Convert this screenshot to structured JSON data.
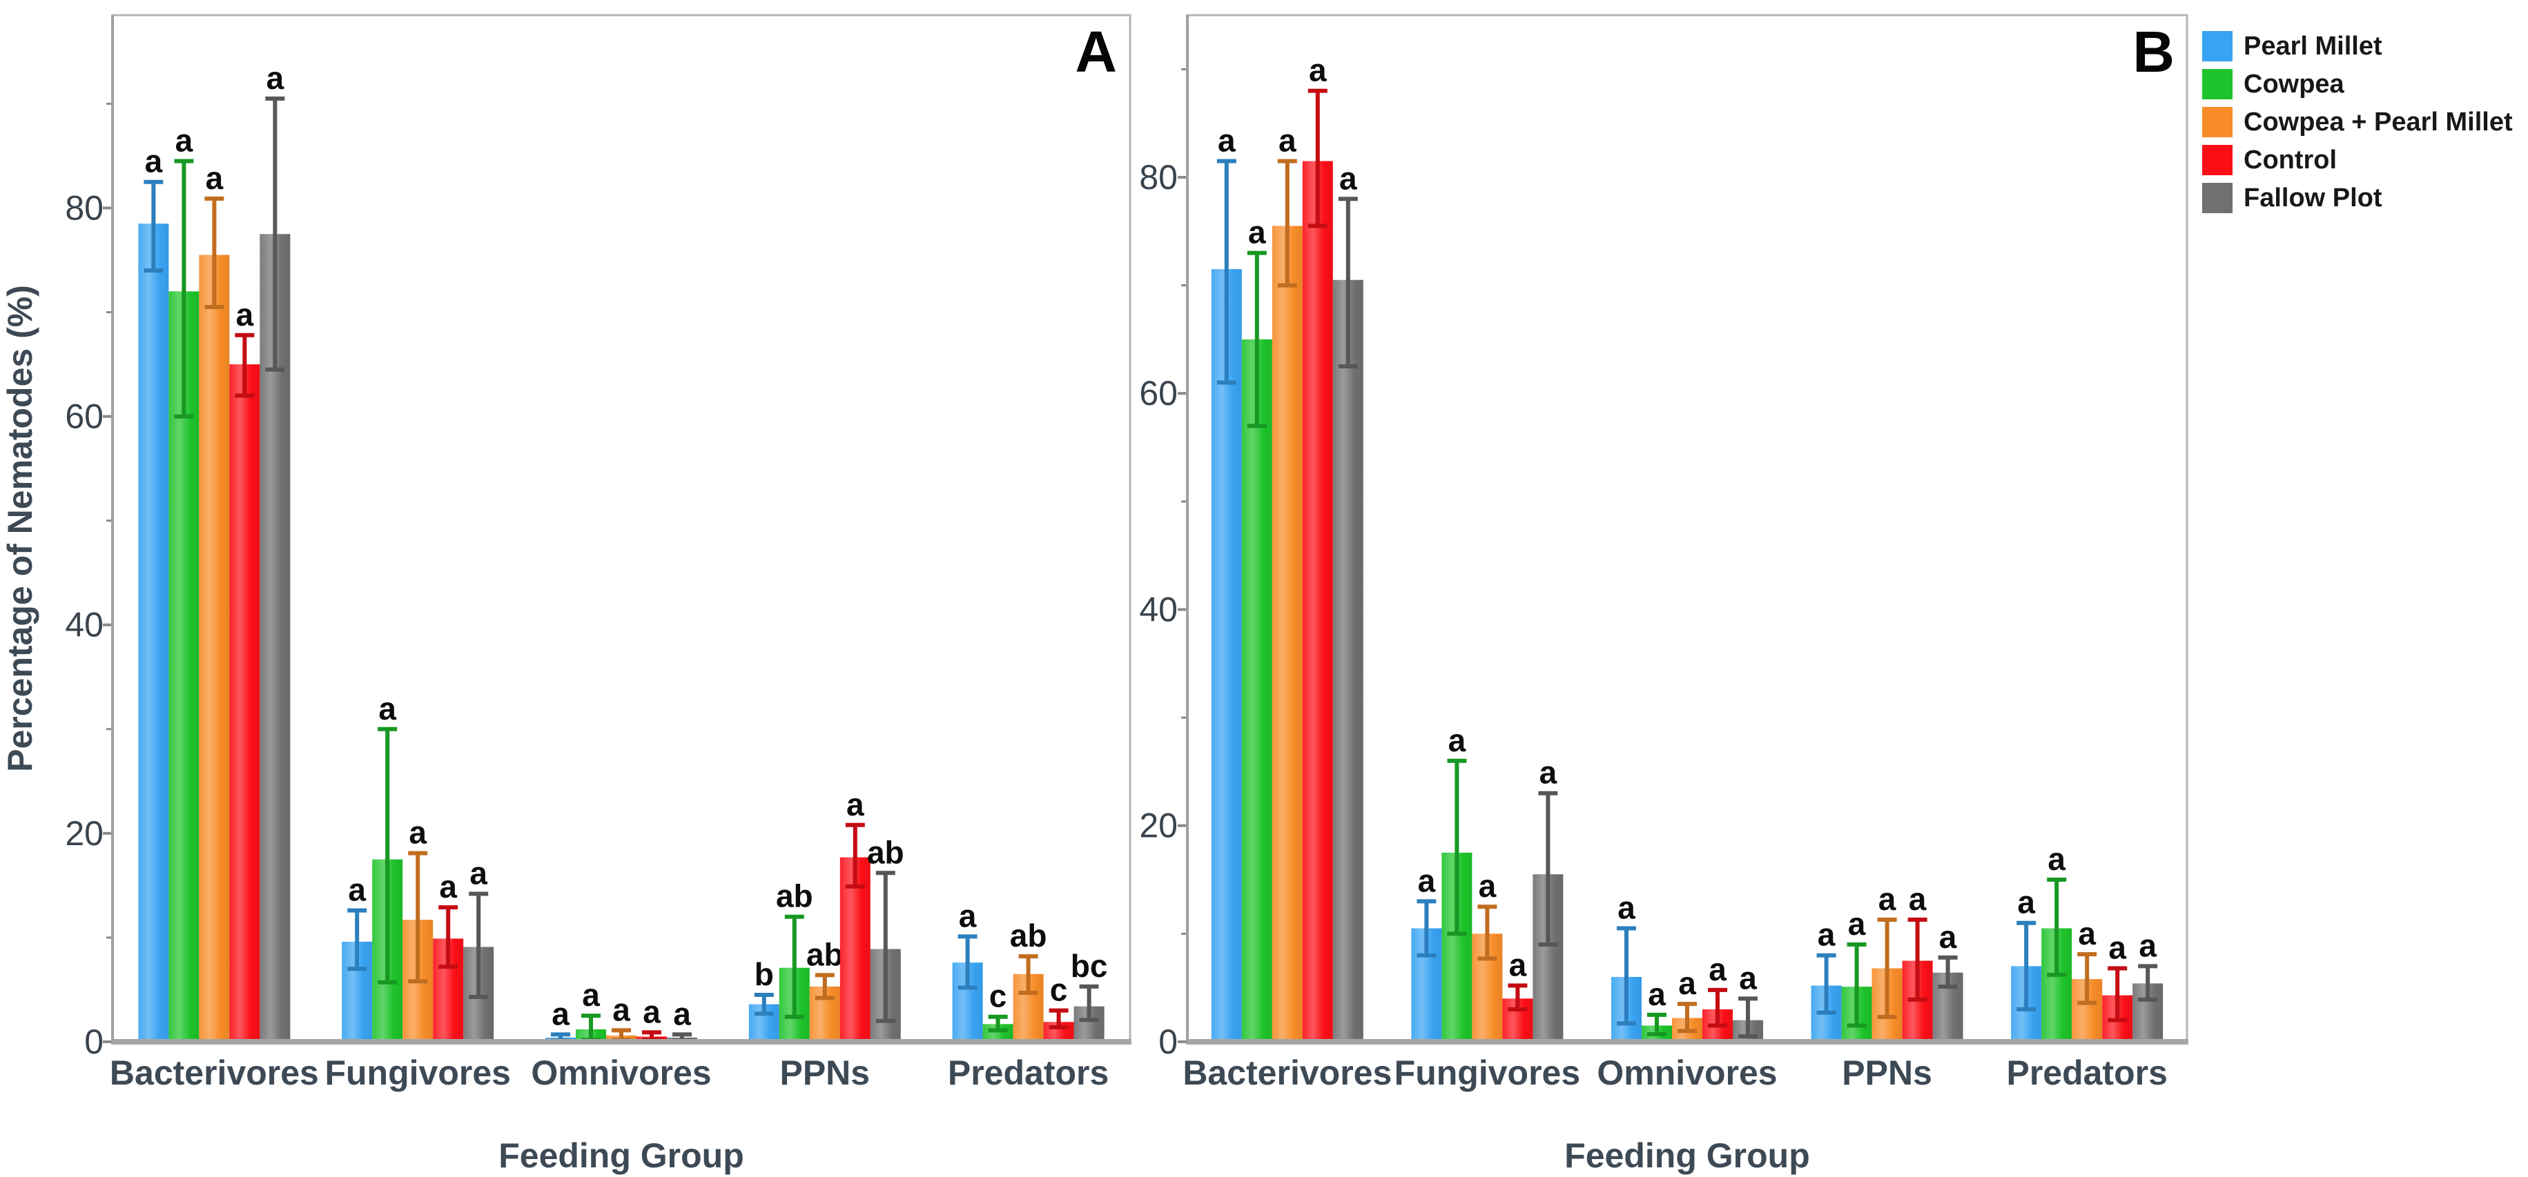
{
  "figure": {
    "panel_a_label": "A",
    "panel_b_label": "B",
    "x_axis_title": "Feeding Group",
    "y_axis_title": "Percentage of Nematodes (%)"
  },
  "legend": {
    "items": [
      {
        "label": "Pearl Millet",
        "color": "#38A3F2"
      },
      {
        "label": "Cowpea",
        "color": "#1EC32B"
      },
      {
        "label": "Cowpea + Pearl Millet",
        "color": "#F78C28"
      },
      {
        "label": "Control",
        "color": "#FB0F17"
      },
      {
        "label": "Fallow Plot",
        "color": "#6F7072"
      }
    ]
  },
  "chart_data": {
    "type": "bar",
    "title": "",
    "xlabel": "Feeding Group",
    "ylabel": "Percentage of Nematodes (%)",
    "categories": [
      "Bacterivores",
      "Fungivores",
      "Omnivores",
      "PPNs",
      "Predators"
    ],
    "y_ticks": [
      0,
      20,
      40,
      60,
      80
    ],
    "y_minor_ticks": [
      10,
      30,
      50,
      70,
      90
    ],
    "grid": false,
    "error_bars": true,
    "significance_letters": true,
    "legend_position": "outside-top-right",
    "panels": [
      {
        "label": "A",
        "y_axis_max_display": 98.5,
        "series": [
          {
            "name": "Pearl Millet",
            "color": "#38A3F2",
            "values": [
              78.5,
              9.6,
              0.4,
              3.6,
              7.6
            ],
            "err_up": [
              4.0,
              3.0,
              0.3,
              0.9,
              2.5
            ],
            "err_down": [
              4.5,
              2.6,
              0.3,
              0.9,
              2.4
            ],
            "letters": [
              "a",
              "a",
              "a",
              "b",
              "a"
            ]
          },
          {
            "name": "Cowpea",
            "color": "#1EC32B",
            "values": [
              72.0,
              17.5,
              1.2,
              7.1,
              1.7
            ],
            "err_up": [
              12.5,
              12.5,
              1.3,
              4.9,
              0.7
            ],
            "err_down": [
              12.0,
              11.8,
              1.0,
              4.7,
              0.6
            ],
            "letters": [
              "a",
              "a",
              "a",
              "ab",
              "c"
            ]
          },
          {
            "name": "Cowpea + Pearl Millet",
            "color": "#F78C28",
            "values": [
              75.5,
              11.7,
              0.6,
              5.3,
              6.5
            ],
            "err_up": [
              5.4,
              6.4,
              0.5,
              1.1,
              1.7
            ],
            "err_down": [
              5.0,
              5.9,
              0.4,
              1.1,
              1.8
            ],
            "letters": [
              "a",
              "a",
              "a",
              "ab",
              "ab"
            ]
          },
          {
            "name": "Control",
            "color": "#FB0F17",
            "values": [
              65.0,
              9.9,
              0.5,
              17.7,
              1.9
            ],
            "err_up": [
              2.8,
              3.0,
              0.4,
              3.1,
              1.1
            ],
            "err_down": [
              3.0,
              2.7,
              0.3,
              2.8,
              0.5
            ],
            "letters": [
              "a",
              "a",
              "a",
              "a",
              "c"
            ]
          },
          {
            "name": "Fallow Plot",
            "color": "#6F7072",
            "values": [
              77.5,
              9.1,
              0.4,
              8.9,
              3.4
            ],
            "err_up": [
              13.0,
              5.1,
              0.3,
              7.3,
              1.9
            ],
            "err_down": [
              13.0,
              4.8,
              0.3,
              6.9,
              1.3
            ],
            "letters": [
              "a",
              "a",
              "a",
              "ab",
              "bc"
            ]
          }
        ]
      },
      {
        "label": "B",
        "y_axis_max_display": 95.0,
        "series": [
          {
            "name": "Pearl Millet",
            "color": "#38A3F2",
            "values": [
              71.5,
              10.5,
              6.0,
              5.2,
              7.0
            ],
            "err_up": [
              10.0,
              2.5,
              4.5,
              2.8,
              4.0
            ],
            "err_down": [
              10.5,
              2.5,
              4.3,
              2.5,
              4.0
            ],
            "letters": [
              "a",
              "a",
              "a",
              "a",
              "a"
            ]
          },
          {
            "name": "Cowpea",
            "color": "#1EC32B",
            "values": [
              65.0,
              17.5,
              1.5,
              5.1,
              10.5
            ],
            "err_up": [
              8.0,
              8.5,
              1.0,
              3.9,
              4.5
            ],
            "err_down": [
              8.0,
              7.5,
              0.8,
              3.6,
              4.3
            ],
            "letters": [
              "a",
              "a",
              "a",
              "a",
              "a"
            ]
          },
          {
            "name": "Cowpea + Pearl Millet",
            "color": "#F78C28",
            "values": [
              75.5,
              10.0,
              2.2,
              6.8,
              5.8
            ],
            "err_up": [
              6.0,
              2.5,
              1.3,
              4.5,
              2.3
            ],
            "err_down": [
              5.5,
              2.3,
              1.2,
              4.5,
              2.2
            ],
            "letters": [
              "a",
              "a",
              "a",
              "a",
              "a"
            ]
          },
          {
            "name": "Control",
            "color": "#FB0F17",
            "values": [
              81.5,
              4.0,
              3.0,
              7.5,
              4.3
            ],
            "err_up": [
              6.5,
              1.2,
              1.8,
              3.8,
              2.5
            ],
            "err_down": [
              6.0,
              1.0,
              1.5,
              3.6,
              2.3
            ],
            "letters": [
              "a",
              "a",
              "a",
              "a",
              "a"
            ]
          },
          {
            "name": "Fallow Plot",
            "color": "#6F7072",
            "values": [
              70.5,
              15.5,
              2.0,
              6.4,
              5.4
            ],
            "err_up": [
              7.5,
              7.5,
              2.0,
              1.4,
              1.6
            ],
            "err_down": [
              8.0,
              6.5,
              1.5,
              1.3,
              1.5
            ],
            "letters": [
              "a",
              "a",
              "a",
              "a",
              "a"
            ]
          }
        ]
      }
    ]
  }
}
